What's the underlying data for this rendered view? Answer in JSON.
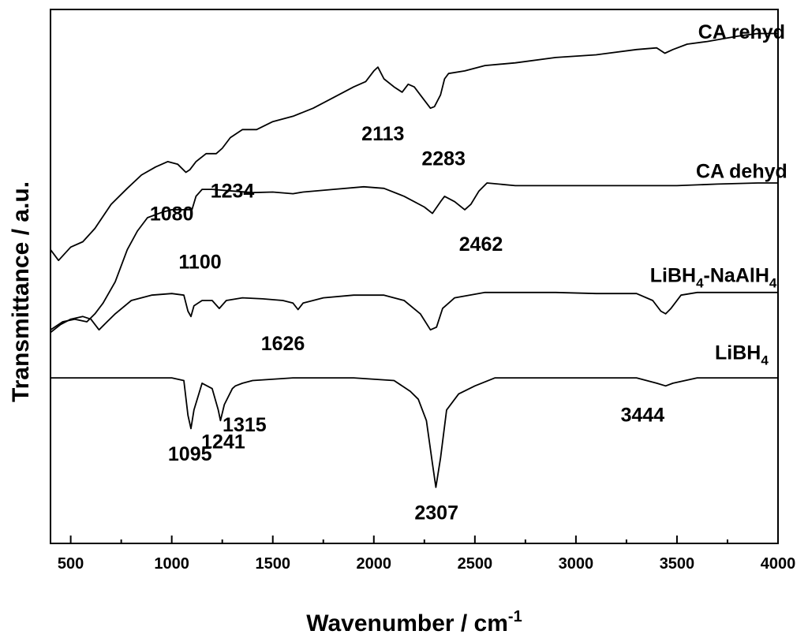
{
  "chart_data": {
    "type": "line",
    "title": "",
    "xlabel": "Wavenumber / cm",
    "xlabel_sup": "-1",
    "ylabel": "Transmittance / a.u.",
    "xlim": [
      400,
      4000
    ],
    "ylim": [
      0,
      100
    ],
    "x_ticks": [
      500,
      1000,
      1500,
      2000,
      2500,
      3000,
      3500,
      4000
    ],
    "y_ticks_shown": false,
    "grid": false,
    "legend": "none",
    "series": [
      {
        "name": "CA rehyd",
        "label": {
          "text": "CA rehyd",
          "x": 3820,
          "y": 94.5
        },
        "points": [
          [
            400,
            55
          ],
          [
            440,
            53
          ],
          [
            500,
            55.5
          ],
          [
            560,
            56.5
          ],
          [
            620,
            59
          ],
          [
            700,
            63.5
          ],
          [
            780,
            66.5
          ],
          [
            850,
            69
          ],
          [
            920,
            70.5
          ],
          [
            980,
            71.5
          ],
          [
            1030,
            71
          ],
          [
            1070,
            69.5
          ],
          [
            1090,
            70
          ],
          [
            1120,
            71.5
          ],
          [
            1170,
            73
          ],
          [
            1220,
            73
          ],
          [
            1250,
            74
          ],
          [
            1290,
            76
          ],
          [
            1350,
            77.5
          ],
          [
            1420,
            77.5
          ],
          [
            1500,
            79
          ],
          [
            1600,
            80
          ],
          [
            1700,
            81.5
          ],
          [
            1800,
            83.5
          ],
          [
            1900,
            85.5
          ],
          [
            1960,
            86.5
          ],
          [
            2000,
            88.5
          ],
          [
            2020,
            89.2
          ],
          [
            2050,
            87
          ],
          [
            2100,
            85.5
          ],
          [
            2140,
            84.5
          ],
          [
            2170,
            86
          ],
          [
            2200,
            85.5
          ],
          [
            2240,
            83.5
          ],
          [
            2280,
            81.5
          ],
          [
            2300,
            81.8
          ],
          [
            2330,
            84
          ],
          [
            2350,
            87
          ],
          [
            2370,
            88
          ],
          [
            2450,
            88.5
          ],
          [
            2550,
            89.5
          ],
          [
            2700,
            90
          ],
          [
            2900,
            91
          ],
          [
            3100,
            91.5
          ],
          [
            3300,
            92.5
          ],
          [
            3400,
            92.8
          ],
          [
            3440,
            91.8
          ],
          [
            3480,
            92.5
          ],
          [
            3550,
            93.5
          ],
          [
            3650,
            94
          ],
          [
            3800,
            95
          ],
          [
            3900,
            95.5
          ],
          [
            4000,
            95.5
          ]
        ]
      },
      {
        "name": "CA dehyd",
        "label": {
          "text": "CA dehyd",
          "x": 3820,
          "y": 68.5
        },
        "points": [
          [
            400,
            40
          ],
          [
            460,
            41.5
          ],
          [
            520,
            42
          ],
          [
            580,
            41.5
          ],
          [
            620,
            43
          ],
          [
            660,
            45
          ],
          [
            720,
            49
          ],
          [
            780,
            55
          ],
          [
            830,
            58.5
          ],
          [
            880,
            61
          ],
          [
            950,
            62
          ],
          [
            1000,
            62.5
          ],
          [
            1050,
            62.5
          ],
          [
            1100,
            62.5
          ],
          [
            1120,
            65
          ],
          [
            1150,
            66.3
          ],
          [
            1200,
            66.3
          ],
          [
            1300,
            66
          ],
          [
            1400,
            65.7
          ],
          [
            1500,
            65.8
          ],
          [
            1600,
            65.5
          ],
          [
            1650,
            65.8
          ],
          [
            1800,
            66.3
          ],
          [
            1950,
            66.8
          ],
          [
            2050,
            66.5
          ],
          [
            2150,
            65
          ],
          [
            2250,
            63
          ],
          [
            2290,
            61.8
          ],
          [
            2330,
            64
          ],
          [
            2350,
            65
          ],
          [
            2400,
            64
          ],
          [
            2450,
            62.5
          ],
          [
            2480,
            63.5
          ],
          [
            2520,
            66
          ],
          [
            2560,
            67.5
          ],
          [
            2700,
            67
          ],
          [
            3000,
            67
          ],
          [
            3300,
            67
          ],
          [
            3500,
            67
          ],
          [
            3700,
            67.3
          ],
          [
            3900,
            67.5
          ],
          [
            4000,
            67.5
          ]
        ]
      },
      {
        "name": "LiBH4-NaAlH4",
        "label": {
          "text": "LiBH",
          "sub": "4",
          "text2": "-NaAlH",
          "sub2": "4",
          "x": 3680,
          "y": 49
        },
        "points": [
          [
            400,
            39.5
          ],
          [
            450,
            41
          ],
          [
            500,
            42
          ],
          [
            560,
            42.5
          ],
          [
            600,
            42
          ],
          [
            640,
            40
          ],
          [
            680,
            41.5
          ],
          [
            720,
            43
          ],
          [
            800,
            45.5
          ],
          [
            900,
            46.5
          ],
          [
            1000,
            46.8
          ],
          [
            1060,
            46.5
          ],
          [
            1080,
            43.5
          ],
          [
            1095,
            42.5
          ],
          [
            1110,
            44.5
          ],
          [
            1150,
            45.5
          ],
          [
            1200,
            45.5
          ],
          [
            1235,
            44
          ],
          [
            1270,
            45.5
          ],
          [
            1350,
            46
          ],
          [
            1450,
            45.8
          ],
          [
            1550,
            45.5
          ],
          [
            1600,
            45
          ],
          [
            1625,
            43.8
          ],
          [
            1650,
            45
          ],
          [
            1750,
            46
          ],
          [
            1900,
            46.5
          ],
          [
            2050,
            46.5
          ],
          [
            2150,
            45.5
          ],
          [
            2230,
            43
          ],
          [
            2280,
            40
          ],
          [
            2310,
            40.5
          ],
          [
            2340,
            44
          ],
          [
            2400,
            46
          ],
          [
            2550,
            47
          ],
          [
            2700,
            47
          ],
          [
            2900,
            47
          ],
          [
            3100,
            46.8
          ],
          [
            3300,
            46.8
          ],
          [
            3380,
            45.5
          ],
          [
            3420,
            43.5
          ],
          [
            3444,
            43
          ],
          [
            3470,
            44
          ],
          [
            3520,
            46.5
          ],
          [
            3600,
            47
          ],
          [
            4000,
            47
          ]
        ]
      },
      {
        "name": "LiBH4",
        "label": {
          "text": "LiBH",
          "sub": "4",
          "x": 3820,
          "y": 34.5
        },
        "points": [
          [
            400,
            31
          ],
          [
            800,
            31
          ],
          [
            1000,
            31
          ],
          [
            1060,
            30.5
          ],
          [
            1080,
            24
          ],
          [
            1095,
            21.5
          ],
          [
            1110,
            25
          ],
          [
            1150,
            30
          ],
          [
            1200,
            29
          ],
          [
            1230,
            25
          ],
          [
            1241,
            23
          ],
          [
            1260,
            26
          ],
          [
            1300,
            29
          ],
          [
            1315,
            29.5
          ],
          [
            1350,
            30
          ],
          [
            1400,
            30.5
          ],
          [
            1600,
            31
          ],
          [
            1900,
            31
          ],
          [
            2100,
            30.5
          ],
          [
            2180,
            28.5
          ],
          [
            2220,
            27
          ],
          [
            2260,
            23
          ],
          [
            2290,
            15
          ],
          [
            2307,
            10.5
          ],
          [
            2330,
            16
          ],
          [
            2360,
            25
          ],
          [
            2420,
            28
          ],
          [
            2500,
            29.5
          ],
          [
            2600,
            31
          ],
          [
            2900,
            31
          ],
          [
            3300,
            31
          ],
          [
            3400,
            30
          ],
          [
            3444,
            29.5
          ],
          [
            3480,
            30
          ],
          [
            3600,
            31
          ],
          [
            4000,
            31
          ]
        ]
      }
    ],
    "annotations": [
      {
        "text": "2113",
        "x": 2045,
        "y": 75.5
      },
      {
        "text": "2283",
        "x": 2345,
        "y": 70.8
      },
      {
        "text": "1080",
        "x": 1000,
        "y": 60.5
      },
      {
        "text": "1234",
        "x": 1300,
        "y": 64.8
      },
      {
        "text": "1100",
        "x": 1140,
        "y": 51.5
      },
      {
        "text": "2462",
        "x": 2530,
        "y": 54.8
      },
      {
        "text": "1626",
        "x": 1550,
        "y": 36.2
      },
      {
        "text": "1095",
        "x": 1090,
        "y": 15.5
      },
      {
        "text": "1241",
        "x": 1255,
        "y": 17.8
      },
      {
        "text": "1315",
        "x": 1360,
        "y": 21
      },
      {
        "text": "2307",
        "x": 2310,
        "y": 4.5
      },
      {
        "text": "3444",
        "x": 3330,
        "y": 22.8
      }
    ]
  }
}
